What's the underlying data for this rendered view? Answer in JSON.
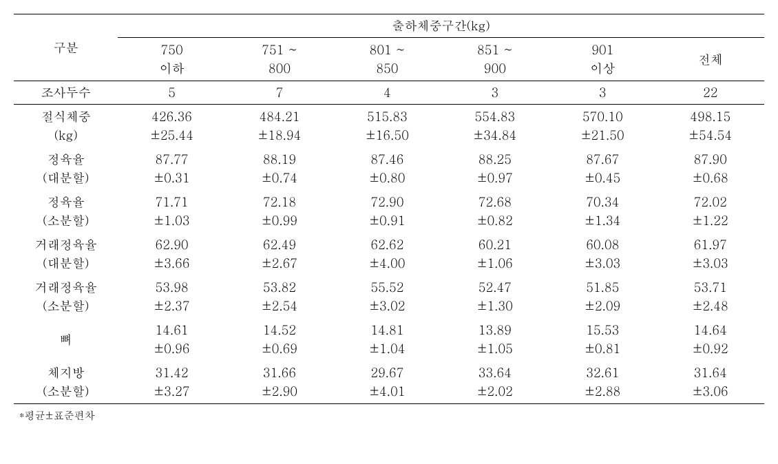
{
  "table": {
    "header": {
      "category_label": "구분",
      "group_header": "출하체중구간(kg)",
      "columns": [
        {
          "line1": "750",
          "line2": "이하"
        },
        {
          "line1": "751 ~",
          "line2": "800"
        },
        {
          "line1": "801 ~",
          "line2": "850"
        },
        {
          "line1": "851 ~",
          "line2": "900"
        },
        {
          "line1": "901",
          "line2": "이상"
        },
        {
          "line1": "전체",
          "line2": ""
        }
      ]
    },
    "count_row": {
      "label": "조사두수",
      "values": [
        "5",
        "7",
        "4",
        "3",
        "3",
        "22"
      ]
    },
    "data_rows": [
      {
        "label1": "절식체중",
        "label2": "(kg)",
        "mean": [
          "426.36",
          "484.21",
          "515.83",
          "554.83",
          "570.10",
          "498.15"
        ],
        "sd": [
          "±25.44",
          "±18.94",
          "±16.50",
          "±34.84",
          "±21.50",
          "±54.54"
        ]
      },
      {
        "label1": "정육율",
        "label2": "(대분할)",
        "mean": [
          "87.77",
          "88.19",
          "87.46",
          "88.25",
          "87.67",
          "87.90"
        ],
        "sd": [
          "±0.31",
          "±0.74",
          "±0.80",
          "±0.97",
          "±0.45",
          "±0.68"
        ]
      },
      {
        "label1": "정육율",
        "label2": "(소분할)",
        "mean": [
          "71.71",
          "72.18",
          "72.90",
          "72.68",
          "70.34",
          "72.02"
        ],
        "sd": [
          "±1.03",
          "±0.99",
          "±0.91",
          "±0.82",
          "±1.34",
          "±1.22"
        ]
      },
      {
        "label1": "거래정육율",
        "label2": "(대분할)",
        "mean": [
          "62.90",
          "62.49",
          "62.62",
          "60.21",
          "60.08",
          "61.97"
        ],
        "sd": [
          "±3.66",
          "±2.67",
          "±4.00",
          "±1.06",
          "±3.03",
          "±3.03"
        ]
      },
      {
        "label1": "거래정육율",
        "label2": "(소분할)",
        "mean": [
          "53.98",
          "53.82",
          "55.52",
          "52.47",
          "51.85",
          "53.71"
        ],
        "sd": [
          "±2.37",
          "±2.54",
          "±3.02",
          "±1.30",
          "±2.09",
          "±2.48"
        ]
      },
      {
        "label1": "뼈",
        "label2": "",
        "mean": [
          "14.61",
          "14.52",
          "14.81",
          "13.89",
          "15.53",
          "14.64"
        ],
        "sd": [
          "±0.96",
          "±0.69",
          "±1.04",
          "±1.05",
          "±0.81",
          "±0.92"
        ]
      },
      {
        "label1": "체지방",
        "label2": "(소분할)",
        "mean": [
          "31.42",
          "31.66",
          "29.67",
          "33.64",
          "32.61",
          "31.64"
        ],
        "sd": [
          "±3.27",
          "±2.90",
          "±4.01",
          "±2.02",
          "±2.88",
          "±3.06"
        ]
      }
    ],
    "footnote": "*평균±표준편차"
  }
}
